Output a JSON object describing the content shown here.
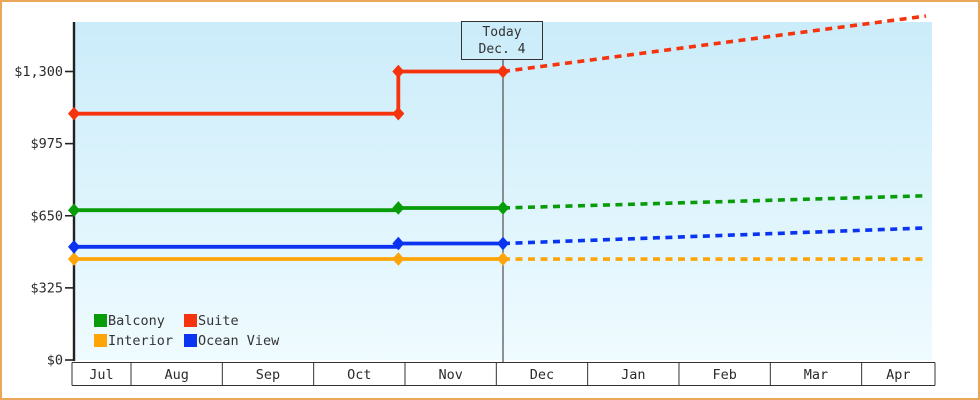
{
  "chart_data": {
    "type": "line",
    "description": "Cruise cabin price history with projected (dotted) future prices",
    "grid": false,
    "x_axis": {
      "labels": [
        "Jul",
        "Aug",
        "Sep",
        "Oct",
        "Nov",
        "Dec",
        "Jan",
        "Feb",
        "Mar",
        "Apr"
      ]
    },
    "y_axis": {
      "min": 0,
      "max": 1300,
      "ticks": [
        {
          "label": "$1,300",
          "value": 1300
        },
        {
          "label": "$975",
          "value": 975
        },
        {
          "label": "$650",
          "value": 650
        },
        {
          "label": "$325",
          "value": 325
        },
        {
          "label": "$0",
          "value": 0
        }
      ]
    },
    "today_marker": {
      "label_line1": "Today",
      "label_line2": "Dec. 4",
      "x_frac": 0.5
    },
    "series": [
      {
        "name": "Interior",
        "color": "#ffa408",
        "solid": [
          [
            0,
            455
          ],
          [
            0.5,
            455
          ]
        ],
        "projected": [
          [
            0.5,
            455
          ],
          [
            0.993,
            455
          ]
        ],
        "markers": [
          [
            0,
            455
          ],
          [
            0.378,
            455
          ],
          [
            0.5,
            455
          ]
        ]
      },
      {
        "name": "Ocean View",
        "color": "#0a34f0",
        "solid": [
          [
            0,
            510
          ],
          [
            0.378,
            510
          ],
          [
            0.378,
            525
          ],
          [
            0.5,
            525
          ]
        ],
        "projected": [
          [
            0.5,
            525
          ],
          [
            0.993,
            595
          ]
        ],
        "markers": [
          [
            0,
            510
          ],
          [
            0.378,
            525
          ],
          [
            0.5,
            525
          ]
        ]
      },
      {
        "name": "Balcony",
        "color": "#089c08",
        "solid": [
          [
            0,
            675
          ],
          [
            0.378,
            675
          ],
          [
            0.378,
            685
          ],
          [
            0.5,
            685
          ]
        ],
        "projected": [
          [
            0.5,
            685
          ],
          [
            0.993,
            740
          ]
        ],
        "markers": [
          [
            0,
            675
          ],
          [
            0.378,
            685
          ],
          [
            0.5,
            685
          ]
        ]
      },
      {
        "name": "Suite",
        "color": "#f5330d",
        "solid": [
          [
            0,
            1110
          ],
          [
            0.378,
            1110
          ],
          [
            0.378,
            1300
          ],
          [
            0.5,
            1300
          ]
        ],
        "projected": [
          [
            0.5,
            1300
          ],
          [
            0.993,
            1550
          ]
        ],
        "markers": [
          [
            0,
            1110
          ],
          [
            0.378,
            1110
          ],
          [
            0.378,
            1300
          ],
          [
            0.5,
            1300
          ]
        ]
      }
    ],
    "legend": [
      {
        "label": "Balcony",
        "color": "#089c08"
      },
      {
        "label": "Suite",
        "color": "#f5330d"
      },
      {
        "label": "Interior",
        "color": "#ffa408"
      },
      {
        "label": "Ocean View",
        "color": "#0a34f0"
      }
    ],
    "colors": {
      "plot_bg_top": "#cbecfa",
      "plot_bg_bottom": "#effbff",
      "frame_border": "#eaa65a",
      "axis": "#222222",
      "today_line": "#4d4d4d",
      "text": "#2b2b2b"
    }
  }
}
